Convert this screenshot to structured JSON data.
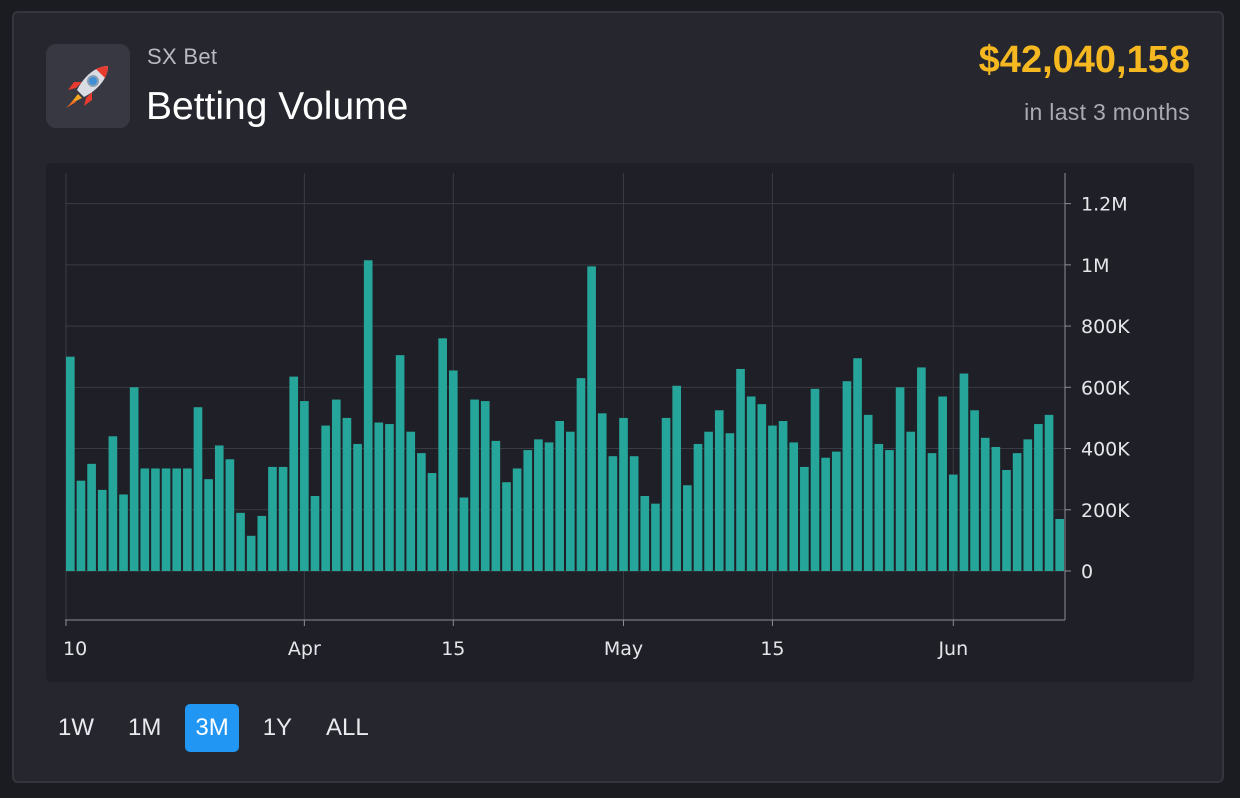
{
  "header": {
    "project": "SX Bet",
    "title": "Betting Volume",
    "total": "$42,040,158",
    "period": "in last 3 months",
    "logo_icon": "rocket-icon"
  },
  "ranges": [
    {
      "label": "1W",
      "active": false
    },
    {
      "label": "1M",
      "active": false
    },
    {
      "label": "3M",
      "active": true
    },
    {
      "label": "1Y",
      "active": false
    },
    {
      "label": "ALL",
      "active": false
    }
  ],
  "colors": {
    "bar": "#26a69a",
    "accent": "#f5b820",
    "active_range": "#2196f3"
  },
  "chart_data": {
    "type": "bar",
    "xlabel": "",
    "ylabel": "",
    "ylim": [
      -160000,
      1300000
    ],
    "y_axis_position": "right",
    "grid": true,
    "y_ticks": [
      {
        "value": 0,
        "label": "0"
      },
      {
        "value": 200000,
        "label": "200K"
      },
      {
        "value": 400000,
        "label": "400K"
      },
      {
        "value": 600000,
        "label": "600K"
      },
      {
        "value": 800000,
        "label": "800K"
      },
      {
        "value": 1000000,
        "label": "1M"
      },
      {
        "value": 1200000,
        "label": "1.2M"
      }
    ],
    "x_ticks": [
      {
        "index": 0,
        "label": "10"
      },
      {
        "index": 22,
        "label": "Apr"
      },
      {
        "index": 36,
        "label": "15"
      },
      {
        "index": 52,
        "label": "May"
      },
      {
        "index": 66,
        "label": "15"
      },
      {
        "index": 83,
        "label": "Jun"
      }
    ],
    "series": [
      {
        "values": [
          700000,
          295000,
          350000,
          265000,
          440000,
          250000,
          600000,
          335000,
          335000,
          335000,
          335000,
          335000,
          535000,
          300000,
          410000,
          365000,
          190000,
          115000,
          180000,
          340000,
          340000,
          635000,
          555000,
          245000,
          475000,
          560000,
          500000,
          415000,
          1015000,
          485000,
          480000,
          705000,
          455000,
          385000,
          320000,
          760000,
          655000,
          240000,
          560000,
          555000,
          425000,
          290000,
          335000,
          395000,
          430000,
          420000,
          490000,
          455000,
          630000,
          995000,
          515000,
          375000,
          500000,
          375000,
          245000,
          220000,
          500000,
          605000,
          280000,
          415000,
          455000,
          525000,
          450000,
          660000,
          570000,
          545000,
          475000,
          490000,
          420000,
          340000,
          595000,
          370000,
          390000,
          620000,
          695000,
          510000,
          415000,
          395000,
          600000,
          455000,
          665000,
          385000,
          570000,
          315000,
          645000,
          525000,
          435000,
          405000,
          330000,
          385000,
          430000,
          480000,
          510000,
          170000
        ]
      }
    ]
  }
}
